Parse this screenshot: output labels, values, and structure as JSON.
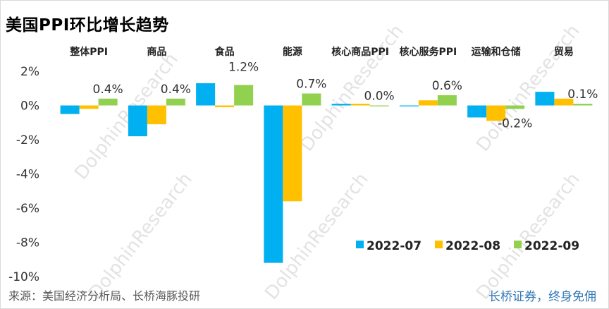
{
  "title": "美国PPI环比增长趋势",
  "source": "来源：美国经济分析局、长桥海豚投研",
  "slogan": "长桥证券，终身免佣",
  "watermark": "DolphinResearch",
  "chart_data": {
    "type": "bar",
    "categories": [
      "整体PPI",
      "商品",
      "食品",
      "能源",
      "核心商品PPI",
      "核心服务PPI",
      "运输和仓储",
      "贸易"
    ],
    "series": [
      {
        "name": "2022-07",
        "color": "#00b0f0",
        "values": [
          -0.5,
          -1.8,
          1.3,
          -9.2,
          0.1,
          0.0,
          -0.7,
          0.8
        ]
      },
      {
        "name": "2022-08",
        "color": "#ffc000",
        "values": [
          -0.2,
          -1.1,
          -0.1,
          -5.6,
          0.1,
          0.3,
          -0.9,
          0.4
        ]
      },
      {
        "name": "2022-09",
        "color": "#92d050",
        "values": [
          0.4,
          0.4,
          1.2,
          0.7,
          0.0,
          0.6,
          -0.2,
          0.1
        ]
      }
    ],
    "data_labels": {
      "series": "2022-09",
      "labels": [
        "0.4%",
        "0.4%",
        "1.2%",
        "0.7%",
        "0.0%",
        "0.6%",
        "-0.2%",
        "0.1%"
      ]
    },
    "yticks": [
      "2%",
      "0%",
      "-2%",
      "-4%",
      "-6%",
      "-8%",
      "-10%"
    ],
    "ylim": [
      -10,
      2
    ],
    "legend_position": "bottom-right",
    "grid": false
  }
}
